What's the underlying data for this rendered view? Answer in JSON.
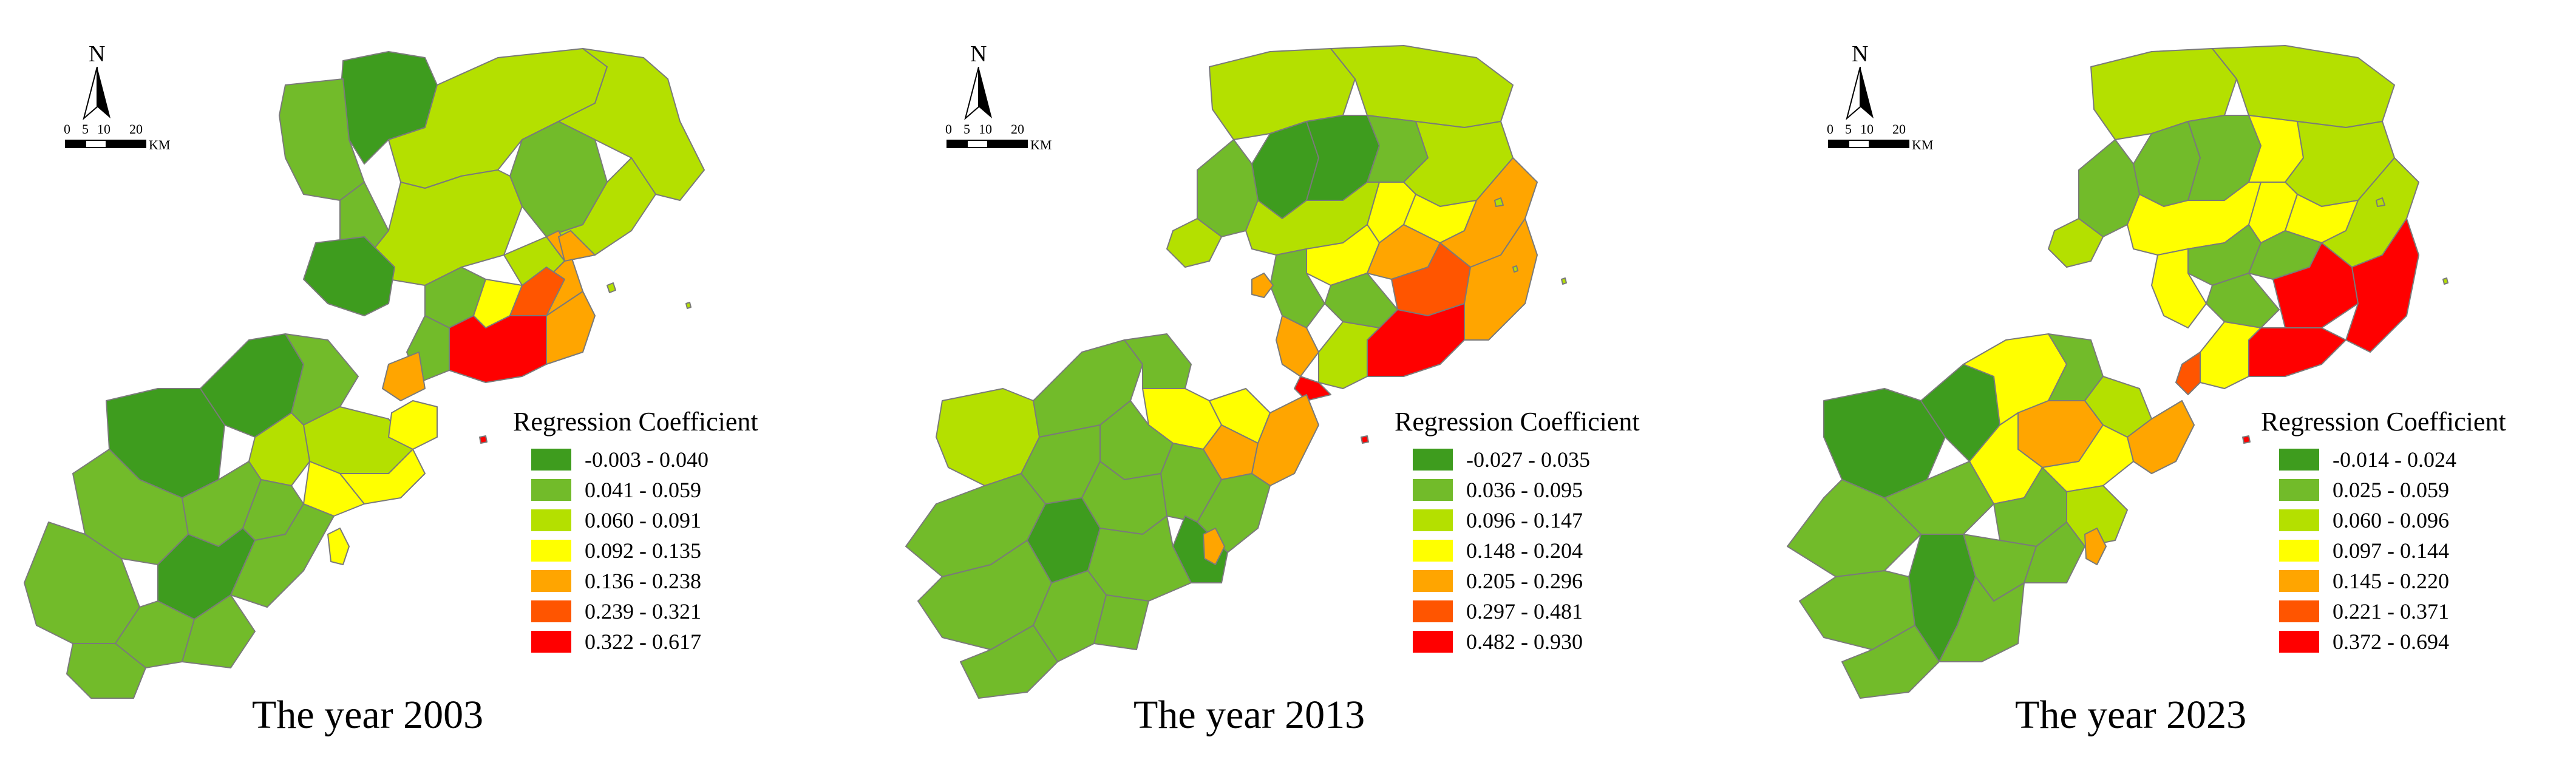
{
  "panels": [
    {
      "caption": "The year 2003",
      "north_label": "N",
      "scale_ticks": [
        "0",
        "5",
        "10",
        "20"
      ],
      "scale_unit": "KM",
      "legend_title": "Regression Coefficient",
      "legend": [
        {
          "label": "-0.003 - 0.040",
          "color": "#3e9c1e"
        },
        {
          "label": "0.041 - 0.059",
          "color": "#72bb2a"
        },
        {
          "label": "0.060 - 0.091",
          "color": "#b4e000"
        },
        {
          "label": "0.092 - 0.135",
          "color": "#ffff00"
        },
        {
          "label": "0.136 - 0.238",
          "color": "#ffa500"
        },
        {
          "label": "0.239 - 0.321",
          "color": "#ff5500"
        },
        {
          "label": "0.322 - 0.617",
          "color": "#ff0000"
        }
      ]
    },
    {
      "caption": "The year 2013",
      "north_label": "N",
      "scale_ticks": [
        "0",
        "5",
        "10",
        "20"
      ],
      "scale_unit": "KM",
      "legend_title": "Regression Coefficient",
      "legend": [
        {
          "label": "-0.027 - 0.035",
          "color": "#3e9c1e"
        },
        {
          "label": "0.036 - 0.095",
          "color": "#72bb2a"
        },
        {
          "label": "0.096 - 0.147",
          "color": "#b4e000"
        },
        {
          "label": "0.148 - 0.204",
          "color": "#ffff00"
        },
        {
          "label": "0.205 - 0.296",
          "color": "#ffa500"
        },
        {
          "label": "0.297 - 0.481",
          "color": "#ff5500"
        },
        {
          "label": "0.482 - 0.930",
          "color": "#ff0000"
        }
      ]
    },
    {
      "caption": "The year 2023",
      "north_label": "N",
      "scale_ticks": [
        "0",
        "5",
        "10",
        "20"
      ],
      "scale_unit": "KM",
      "legend_title": "Regression Coefficient",
      "legend": [
        {
          "label": "-0.014 - 0.024",
          "color": "#3e9c1e"
        },
        {
          "label": "0.025 - 0.059",
          "color": "#72bb2a"
        },
        {
          "label": "0.060 - 0.096",
          "color": "#b4e000"
        },
        {
          "label": "0.097 - 0.144",
          "color": "#ffff00"
        },
        {
          "label": "0.145 - 0.220",
          "color": "#ffa500"
        },
        {
          "label": "0.221 - 0.371",
          "color": "#ff5500"
        },
        {
          "label": "0.372 - 0.694",
          "color": "#ff0000"
        }
      ]
    }
  ]
}
